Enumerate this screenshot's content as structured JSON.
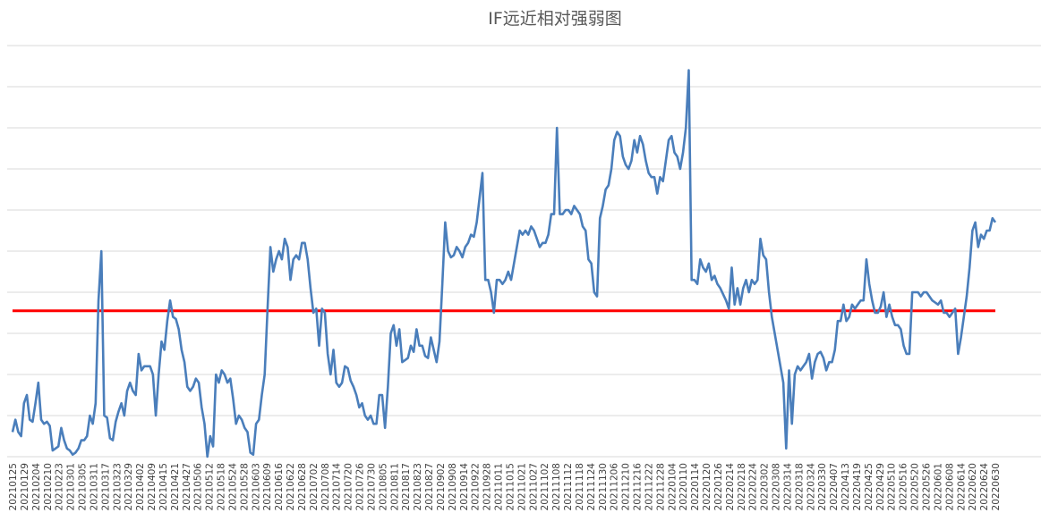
{
  "chart_data": {
    "type": "line",
    "title": "IF远近相对强弱图",
    "xlabel": "",
    "ylabel": "",
    "grid": true,
    "legend": "none",
    "y_axis_labels_shown": false,
    "gridline_count": 10,
    "colors": {
      "series": "#4a7ebb",
      "reference": "#ff0000",
      "grid": "#d9d9d9",
      "title": "#595959"
    },
    "x_tick_labels": [
      "20210125",
      "20210129",
      "20210204",
      "20210210",
      "20210223",
      "20210301",
      "20210305",
      "20210311",
      "20210317",
      "20210323",
      "20210329",
      "20210402",
      "20210409",
      "20210415",
      "20210421",
      "20210427",
      "20210506",
      "20210512",
      "20210518",
      "20210524",
      "20210528",
      "20210603",
      "20210609",
      "20210616",
      "20210622",
      "20210628",
      "20210702",
      "20210708",
      "20210714",
      "20210720",
      "20210726",
      "20210730",
      "20210805",
      "20210811",
      "20210817",
      "20210823",
      "20210827",
      "20210902",
      "20210908",
      "20210914",
      "20210922",
      "20210928",
      "20211011",
      "20211015",
      "20211021",
      "20211027",
      "20211102",
      "20211108",
      "20211112",
      "20211118",
      "20211124",
      "20211130",
      "20211206",
      "20211210",
      "20211216",
      "20211222",
      "20211228",
      "20220104",
      "20220110",
      "20220114",
      "20220120",
      "20220126",
      "20220214",
      "20220218",
      "20220224",
      "20220302",
      "20220308",
      "20220314",
      "20220318",
      "20220324",
      "20220330",
      "20220407",
      "20220413",
      "20220419",
      "20220425",
      "20220429",
      "20220510",
      "20220516",
      "20220520",
      "20220526",
      "20220601",
      "20220608",
      "20220614",
      "20220620",
      "20220624",
      "20220630"
    ],
    "series": [
      {
        "values": [
          6,
          9,
          6,
          5,
          13,
          15,
          9,
          8.5,
          13,
          18,
          9,
          8,
          8.5,
          7.5,
          1.5,
          2,
          2.5,
          7,
          4,
          2,
          1.5,
          0.5,
          1,
          2,
          4,
          4,
          5,
          10,
          8,
          13,
          38,
          50,
          10,
          9.5,
          4.5,
          4,
          8.5,
          11,
          13,
          10,
          16,
          18,
          16,
          15,
          25,
          21,
          22,
          22,
          22,
          20,
          10,
          20,
          28,
          26,
          33,
          38,
          34,
          33.5,
          31,
          26,
          23,
          17,
          16,
          17,
          19,
          18,
          12,
          8,
          0,
          5,
          2.5,
          20,
          18,
          21,
          20,
          18,
          19,
          14,
          8,
          10,
          9,
          7,
          6,
          1,
          0.5,
          8,
          9,
          15,
          20,
          36,
          51,
          45,
          48,
          50,
          48,
          53,
          51,
          43,
          48,
          49,
          48,
          52,
          52,
          48,
          41,
          35,
          36,
          27,
          36,
          35,
          25,
          20,
          26,
          18,
          17,
          18,
          22,
          21.5,
          18.5,
          17,
          15,
          12,
          13,
          10,
          9,
          10,
          8,
          8,
          15,
          15,
          7,
          17,
          30,
          32,
          27,
          31,
          23,
          23.5,
          24,
          27,
          25.5,
          31,
          27,
          27,
          24.5,
          24,
          29,
          26,
          23,
          28,
          42,
          57,
          50,
          48.5,
          49,
          51,
          50,
          48.5,
          51,
          52,
          54,
          53.5,
          57,
          63,
          69,
          43,
          43,
          40,
          35,
          43,
          43,
          42,
          43,
          45,
          43,
          47,
          51,
          55,
          54,
          55,
          54,
          56,
          55,
          53,
          51,
          52,
          52,
          54,
          59,
          59,
          80,
          59,
          59,
          60,
          60,
          59,
          61,
          60,
          59,
          56,
          55,
          48,
          47,
          40,
          39,
          58,
          61,
          65,
          66,
          70,
          77,
          79,
          78,
          73,
          71,
          70,
          72,
          77,
          74,
          78,
          76,
          72,
          69,
          68,
          68,
          64,
          68,
          67,
          72,
          77,
          78,
          74,
          73,
          70,
          74,
          80,
          94,
          43,
          43,
          42,
          48,
          46,
          45,
          47,
          43,
          44,
          42,
          41,
          39.5,
          38,
          36,
          46,
          37,
          41,
          37,
          41,
          43,
          40,
          43,
          42,
          43,
          53,
          49,
          48,
          40,
          34,
          30,
          26,
          22,
          18,
          2,
          21,
          8,
          20,
          22,
          21,
          22,
          23,
          25,
          19,
          23,
          25,
          25.5,
          24,
          21,
          23,
          23,
          26,
          33,
          33,
          37,
          33,
          34,
          37,
          36,
          37,
          38,
          38,
          48,
          42,
          38,
          35,
          35,
          36.5,
          40,
          34,
          37,
          34,
          32,
          32,
          31,
          27,
          25,
          25,
          40,
          40,
          40,
          39,
          40,
          40,
          39,
          38,
          37.5,
          37,
          38,
          35,
          35,
          34,
          35,
          36,
          25,
          29,
          34,
          39,
          46,
          55,
          57,
          51,
          54,
          53,
          55,
          55,
          58,
          57
        ]
      },
      {
        "name": "",
        "type": "reference-line",
        "values": [
          35.5
        ]
      }
    ],
    "ylim": [
      0,
      100
    ]
  }
}
